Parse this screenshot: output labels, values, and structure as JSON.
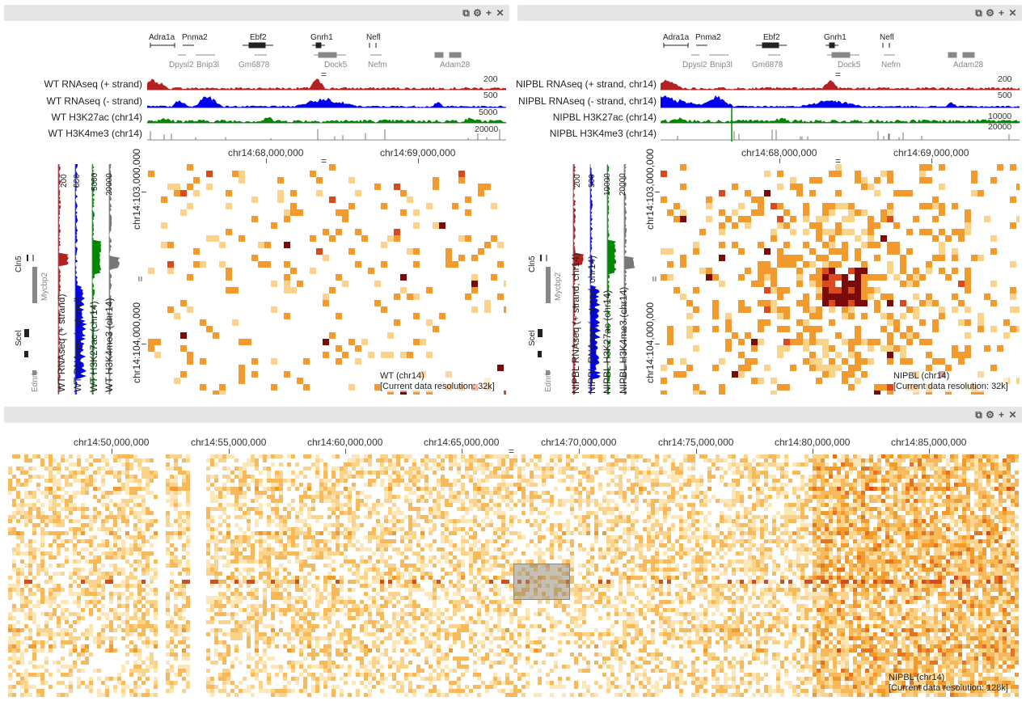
{
  "colors": {
    "plus_strand": "#b22222",
    "minus_strand": "#0000ee",
    "h3k27ac": "#008800",
    "h3k4me3": "#777777",
    "heat_low": "#fbd38a",
    "heat_mid": "#f29a2e",
    "heat_high": "#d94a1e",
    "heat_max": "#7a0b0b",
    "header_bg": "#e6e6e6"
  },
  "header_icons": [
    "copy-icon",
    "gear-icon",
    "plus-icon",
    "close-icon"
  ],
  "header_glyphs": [
    "⧉",
    "⚙",
    "+",
    "✕"
  ],
  "genes": {
    "top": [
      "Adra1a",
      "Pnma2",
      "Ebf2",
      "Gnrh1",
      "Nefl"
    ],
    "bottom": [
      "Dpysl2",
      "Bnip3l",
      "Gm6878",
      "Dock5",
      "Nefm",
      "Adam28"
    ]
  },
  "side_genes": [
    "Cln5",
    "Mycbp2",
    "Scel",
    "Ednrb"
  ],
  "panels": [
    {
      "tracks": [
        "WT RNAseq (+ strand)",
        "WT RNAseq (- strand)",
        "WT H3K27ac (chr14)",
        "WT H3K4me3 (chr14)"
      ],
      "scales": [
        "200",
        "500",
        "5000",
        "20000"
      ],
      "x_ticks": [
        "chr14:68,000,000",
        "chr14:69,000,000"
      ],
      "y_ticks": [
        "chr14:103,000,000",
        "chr14:104,000,000"
      ],
      "map_name": "WT (chr14)",
      "resolution": "[Current data resolution: 32k]"
    },
    {
      "tracks": [
        "NIPBL RNAseq (+ strand, chr14)",
        "NIPBL RNAseq (- strand, chr14)",
        "NIPBL H3K27ac (chr14)",
        "NIPBL H3K4me3 (chr14)"
      ],
      "scales": [
        "200",
        "500",
        "10000",
        "20000"
      ],
      "x_ticks": [
        "chr14:68,000,000",
        "chr14:69,000,000"
      ],
      "y_ticks": [
        "chr14:103,000,000",
        "chr14:104,000,000"
      ],
      "map_name": "NIPBL (chr14)",
      "resolution": "[Current data resolution: 32k]"
    }
  ],
  "bottom_panel": {
    "x_ticks": [
      "chr14:50,000,000",
      "chr14:55,000,000",
      "chr14:60,000,000",
      "chr14:65,000,000",
      "chr14:70,000,000",
      "chr14:75,000,000",
      "chr14:80,000,000",
      "chr14:85,000,000"
    ],
    "map_name": "NIPBL (chr14)",
    "resolution": "[Current data resolution: 128k]"
  }
}
